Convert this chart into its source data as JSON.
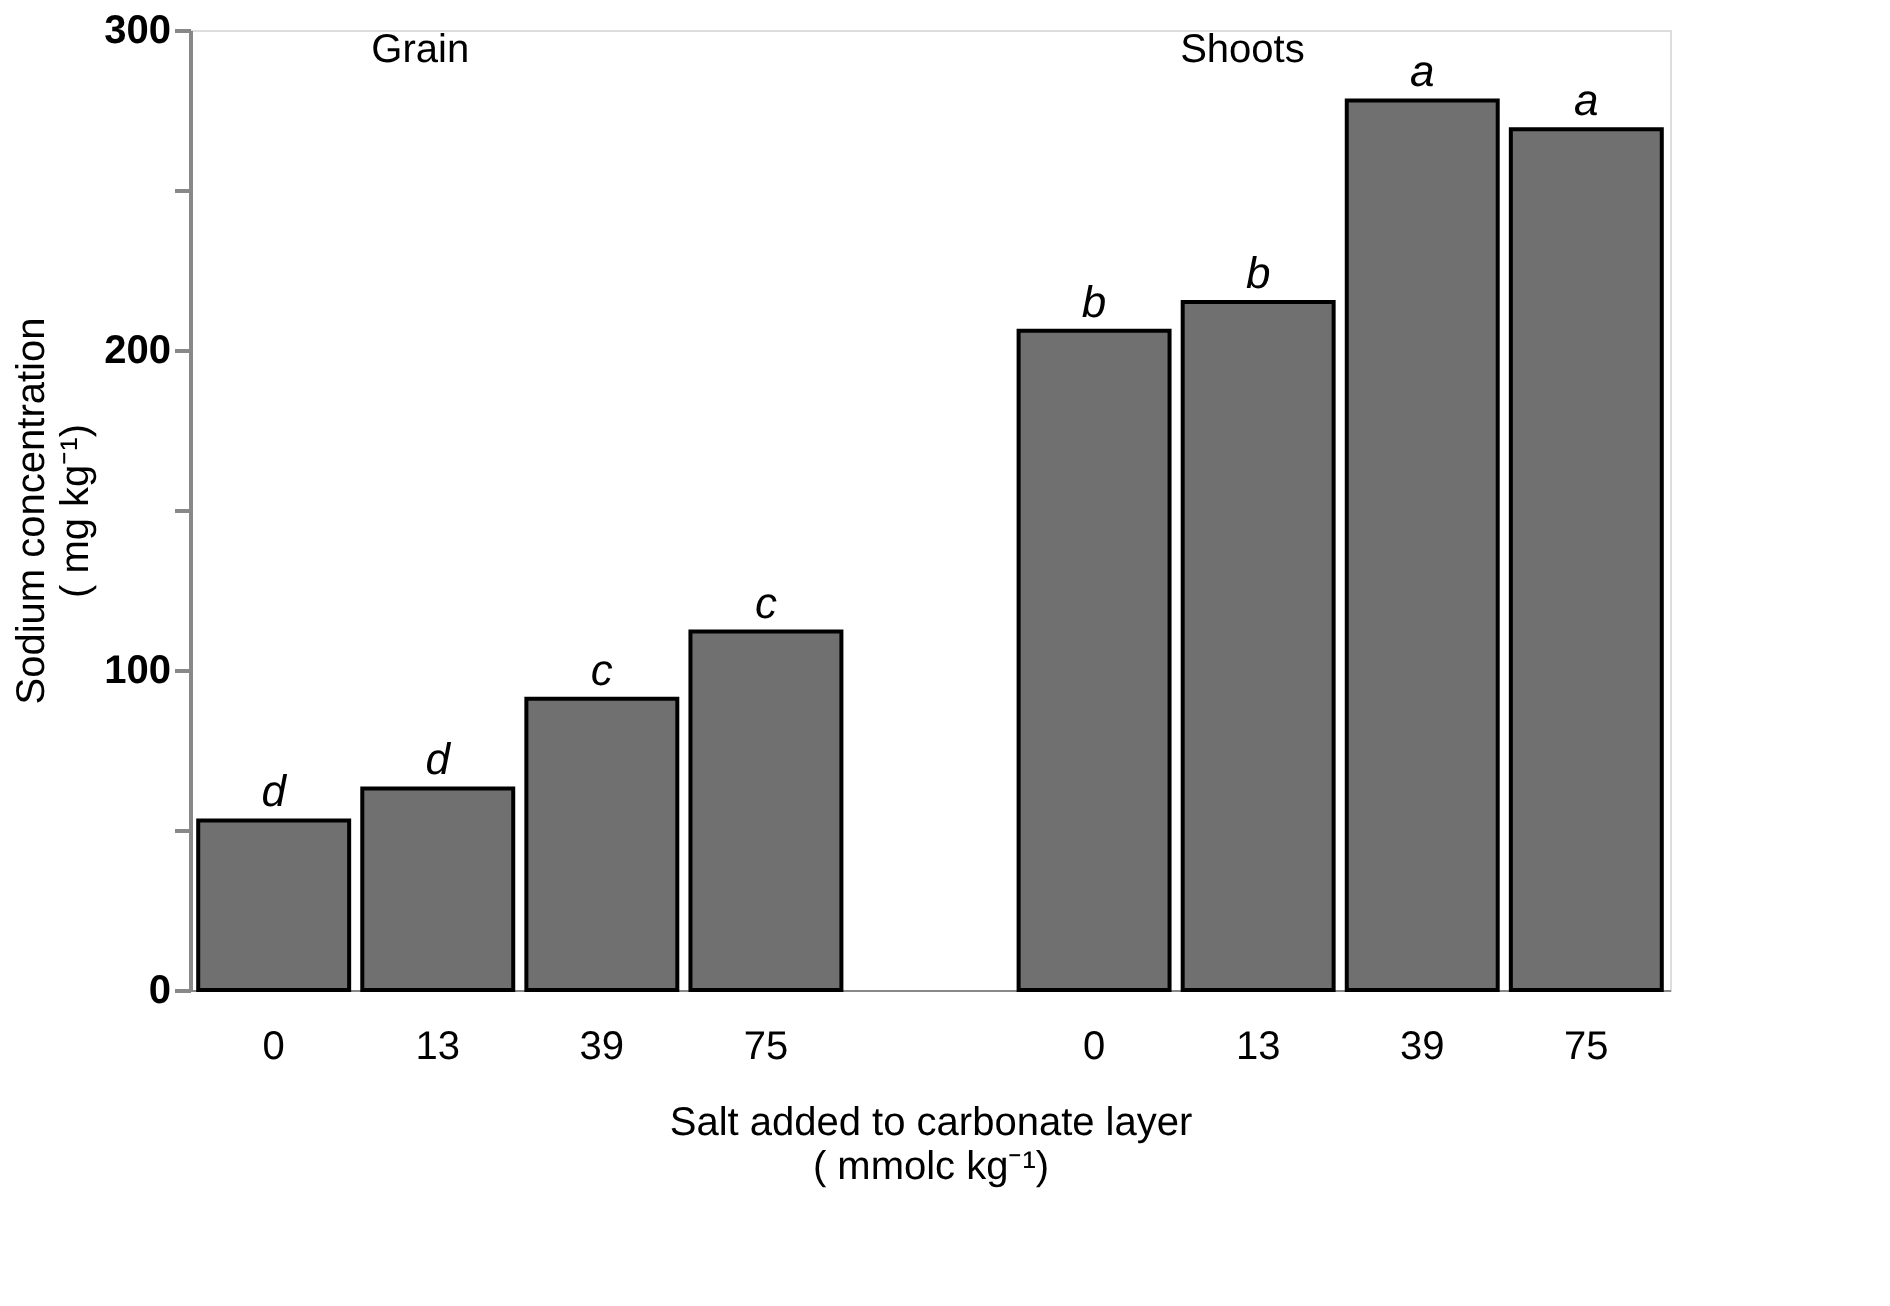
{
  "chart_data": {
    "type": "bar",
    "xlabel": "Salt added to carbonate layer\n( mmolc kg⁻¹)",
    "ylabel": "Sodium concentration\n( mg kg⁻¹)",
    "categories": [
      "0",
      "13",
      "39",
      "75",
      null,
      "0",
      "13",
      "39",
      "75"
    ],
    "values": [
      53,
      63,
      91,
      112,
      null,
      206,
      215,
      278,
      269
    ],
    "value_labels": [
      "d",
      "d",
      "c",
      "c",
      null,
      "b",
      "b",
      "a",
      "a"
    ],
    "color": "#707070",
    "annotations": [
      "Grain",
      "Shoots"
    ],
    "ylim": [
      0,
      300
    ],
    "yticks": [
      0,
      {
        "value": 50,
        "label": null
      },
      100,
      {
        "value": 150,
        "label": null
      },
      200,
      {
        "value": 250,
        "label": null
      },
      300
    ],
    "grid": false
  }
}
